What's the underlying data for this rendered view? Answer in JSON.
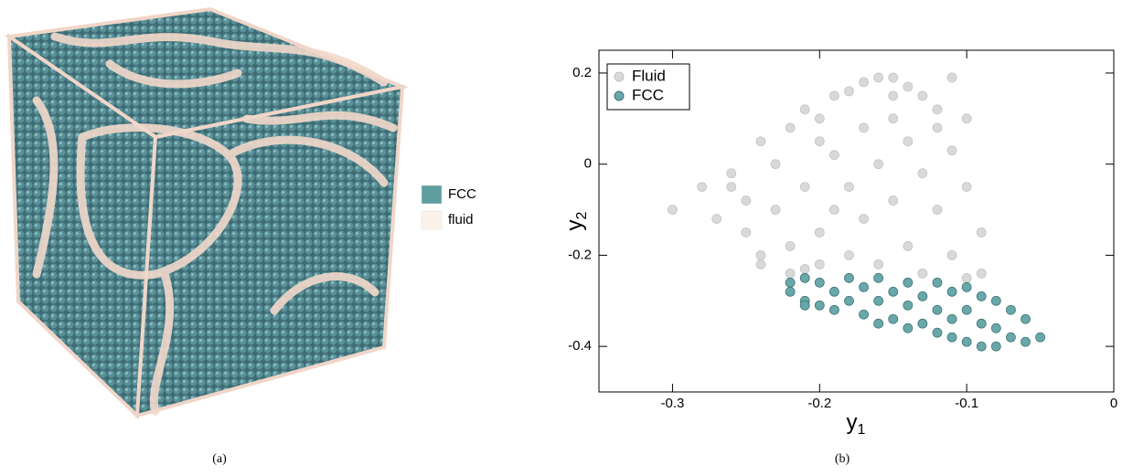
{
  "figure_a": {
    "legend": [
      {
        "name": "FCC",
        "color": "#5f9ea0"
      },
      {
        "name": "fluid",
        "color": "#fbf3ea"
      }
    ],
    "caption": "(a)"
  },
  "chart_data": {
    "type": "scatter",
    "caption": "(b)",
    "xlabel": [
      "y",
      "1"
    ],
    "ylabel": [
      "y",
      "2"
    ],
    "xlim": [
      -0.35,
      0
    ],
    "xticks": [
      -0.3,
      -0.2,
      -0.1,
      0
    ],
    "ylim": [
      -0.5,
      0.25
    ],
    "yticks": [
      -0.4,
      -0.2,
      0,
      0.2
    ],
    "legend": "upper left",
    "series": [
      {
        "name": "Fluid",
        "color": "#d9d9d9",
        "x": [
          -0.3,
          -0.28,
          -0.27,
          -0.26,
          -0.25,
          -0.25,
          -0.24,
          -0.24,
          -0.23,
          -0.23,
          -0.22,
          -0.22,
          -0.22,
          -0.21,
          -0.21,
          -0.2,
          -0.2,
          -0.2,
          -0.19,
          -0.19,
          -0.19,
          -0.18,
          -0.18,
          -0.18,
          -0.17,
          -0.17,
          -0.17,
          -0.16,
          -0.16,
          -0.16,
          -0.15,
          -0.15,
          -0.15,
          -0.14,
          -0.14,
          -0.14,
          -0.13,
          -0.13,
          -0.13,
          -0.12,
          -0.12,
          -0.11,
          -0.11,
          -0.11,
          -0.1,
          -0.1,
          -0.1,
          -0.09,
          -0.09,
          -0.21,
          -0.24,
          -0.26,
          -0.15,
          -0.12,
          -0.2
        ],
        "values": [
          -0.1,
          -0.05,
          -0.12,
          -0.02,
          -0.08,
          -0.15,
          0.05,
          -0.2,
          0.0,
          -0.1,
          0.08,
          -0.18,
          -0.24,
          0.12,
          -0.05,
          0.1,
          -0.15,
          -0.22,
          0.15,
          0.02,
          -0.1,
          0.16,
          -0.05,
          -0.2,
          0.18,
          0.08,
          -0.12,
          0.19,
          0.0,
          -0.22,
          0.19,
          0.1,
          -0.08,
          0.17,
          0.05,
          -0.18,
          0.15,
          -0.02,
          -0.24,
          0.12,
          -0.1,
          0.19,
          0.03,
          -0.2,
          0.1,
          -0.05,
          -0.25,
          -0.15,
          -0.24,
          -0.23,
          -0.22,
          -0.05,
          0.15,
          0.08,
          0.05
        ]
      },
      {
        "name": "FCC",
        "color": "#69a8aa",
        "x": [
          -0.22,
          -0.22,
          -0.21,
          -0.21,
          -0.2,
          -0.2,
          -0.19,
          -0.19,
          -0.18,
          -0.18,
          -0.17,
          -0.17,
          -0.16,
          -0.16,
          -0.16,
          -0.15,
          -0.15,
          -0.14,
          -0.14,
          -0.14,
          -0.13,
          -0.13,
          -0.12,
          -0.12,
          -0.12,
          -0.11,
          -0.11,
          -0.11,
          -0.1,
          -0.1,
          -0.1,
          -0.09,
          -0.09,
          -0.09,
          -0.08,
          -0.08,
          -0.08,
          -0.07,
          -0.07,
          -0.06,
          -0.06,
          -0.05,
          -0.21
        ],
        "values": [
          -0.26,
          -0.28,
          -0.25,
          -0.3,
          -0.26,
          -0.31,
          -0.28,
          -0.32,
          -0.25,
          -0.3,
          -0.27,
          -0.33,
          -0.25,
          -0.3,
          -0.35,
          -0.28,
          -0.34,
          -0.26,
          -0.31,
          -0.36,
          -0.29,
          -0.35,
          -0.26,
          -0.32,
          -0.37,
          -0.28,
          -0.34,
          -0.38,
          -0.27,
          -0.32,
          -0.39,
          -0.29,
          -0.35,
          -0.4,
          -0.3,
          -0.36,
          -0.4,
          -0.32,
          -0.38,
          -0.34,
          -0.39,
          -0.38,
          -0.31
        ]
      }
    ]
  }
}
